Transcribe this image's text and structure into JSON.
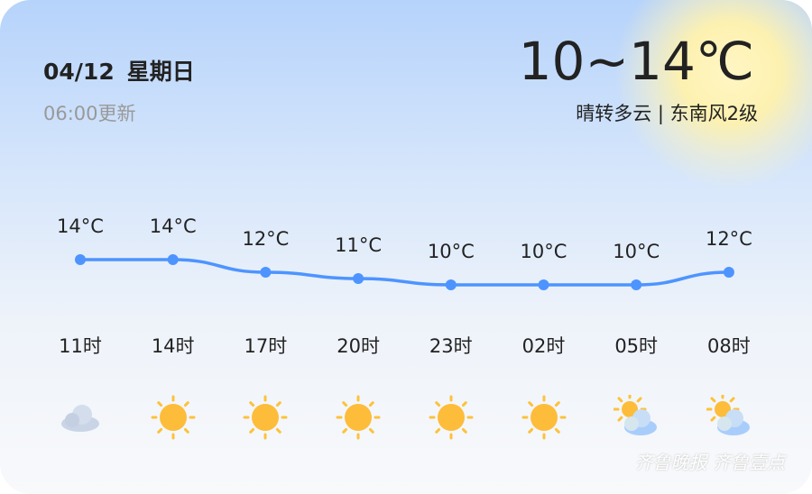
{
  "header": {
    "date": "04/12",
    "weekday": "星期日",
    "updated": "06:00更新",
    "temp_range": "10~14℃",
    "condition": "晴转多云 | 东南风2级"
  },
  "chart_data": {
    "type": "line",
    "categories": [
      "11时",
      "14时",
      "17时",
      "20时",
      "23时",
      "02时",
      "05时",
      "08时"
    ],
    "values": [
      14,
      14,
      12,
      11,
      10,
      10,
      10,
      12
    ],
    "labels": [
      "14°C",
      "14°C",
      "12°C",
      "11°C",
      "10°C",
      "10°C",
      "10°C",
      "12°C"
    ],
    "line_color": "#4d94ff"
  },
  "icons": [
    "cloudy",
    "sunny",
    "sunny",
    "sunny",
    "sunny",
    "sunny",
    "partly-cloudy",
    "partly-cloudy"
  ],
  "watermark": "齐鲁晚报 齐鲁壹点"
}
